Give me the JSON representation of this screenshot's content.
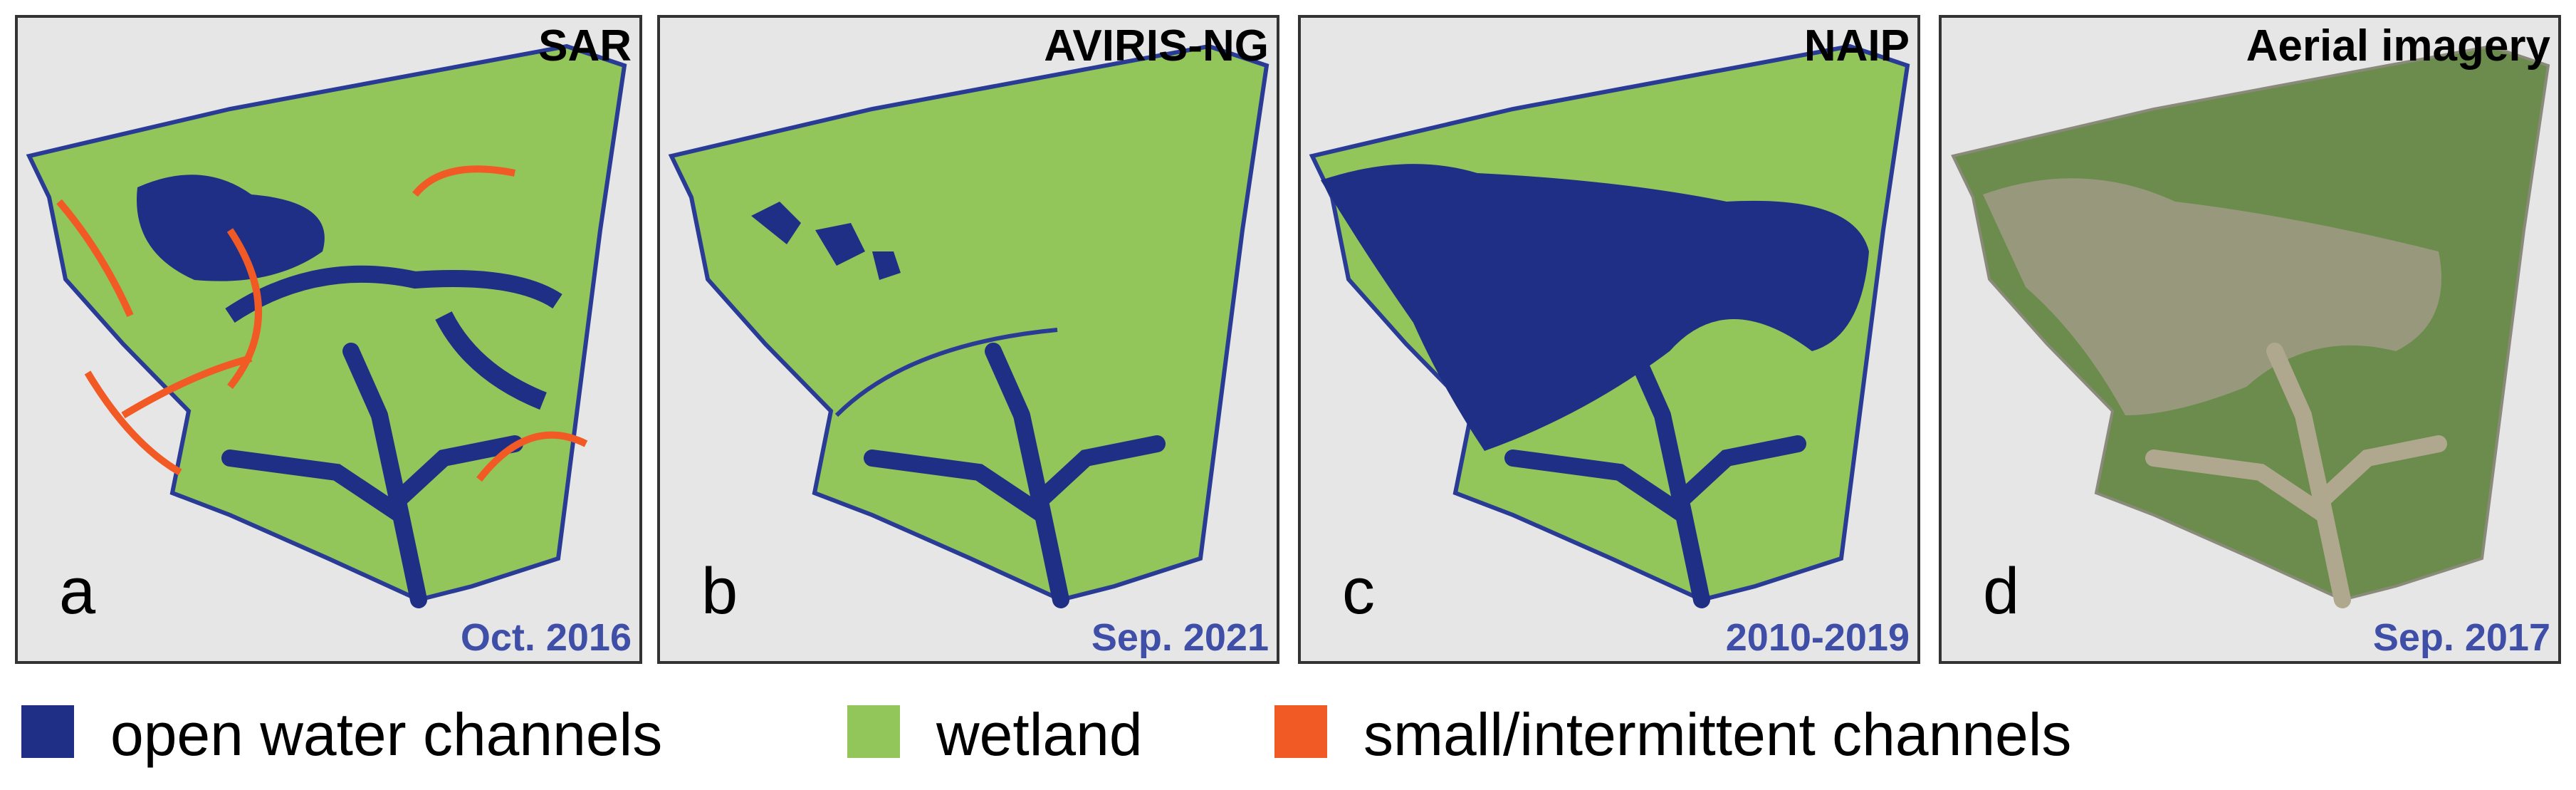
{
  "panels": [
    {
      "title": "SAR",
      "letter": "a",
      "date": "Oct. 2016"
    },
    {
      "title": "AVIRIS-NG",
      "letter": "b",
      "date": "Sep. 2021"
    },
    {
      "title": "NAIP",
      "letter": "c",
      "date": "2010-2019"
    },
    {
      "title": "Aerial imagery",
      "letter": "d",
      "date": "Sep. 2017"
    }
  ],
  "legend": [
    {
      "label": "open water channels",
      "color": "#1f2f86"
    },
    {
      "label": "wetland",
      "color": "#92c65a"
    },
    {
      "label": "small/intermittent channels",
      "color": "#f15a24"
    }
  ]
}
